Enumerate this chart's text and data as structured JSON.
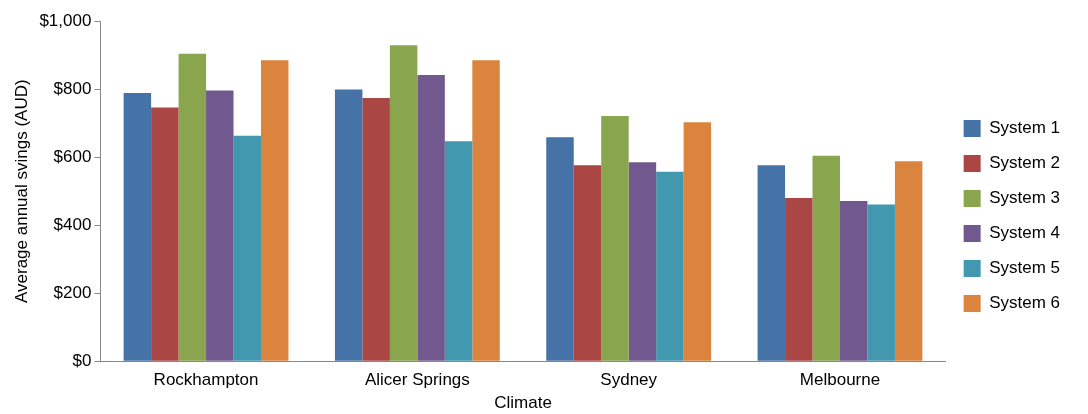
{
  "chart_data": {
    "type": "bar",
    "xlabel": "Climate",
    "ylabel": "Average annual svings (AUD)",
    "categories": [
      "Rockhampton",
      "Alicer Springs",
      "Sydney",
      "Melbourne"
    ],
    "series": [
      {
        "name": "System 1",
        "color": "#4572a7",
        "values": [
          789,
          799,
          659,
          576
        ]
      },
      {
        "name": "System 2",
        "color": "#aa4643",
        "values": [
          746,
          774,
          576,
          480
        ]
      },
      {
        "name": "System 3",
        "color": "#89a54e",
        "values": [
          904,
          929,
          721,
          604
        ]
      },
      {
        "name": "System 4",
        "color": "#71588f",
        "values": [
          796,
          842,
          585,
          471
        ]
      },
      {
        "name": "System 5",
        "color": "#4198af",
        "values": [
          663,
          647,
          557,
          461
        ]
      },
      {
        "name": "System 6",
        "color": "#db843d",
        "values": [
          885,
          885,
          703,
          588
        ]
      }
    ],
    "ylim": [
      0,
      1000
    ],
    "yticks": [
      {
        "value": 0,
        "label": "$0"
      },
      {
        "value": 200,
        "label": "$200"
      },
      {
        "value": 400,
        "label": "$400"
      },
      {
        "value": 600,
        "label": "$600"
      },
      {
        "value": 800,
        "label": "$800"
      },
      {
        "value": 1000,
        "label": "$1,000"
      }
    ],
    "grid": false,
    "legend": "right"
  }
}
